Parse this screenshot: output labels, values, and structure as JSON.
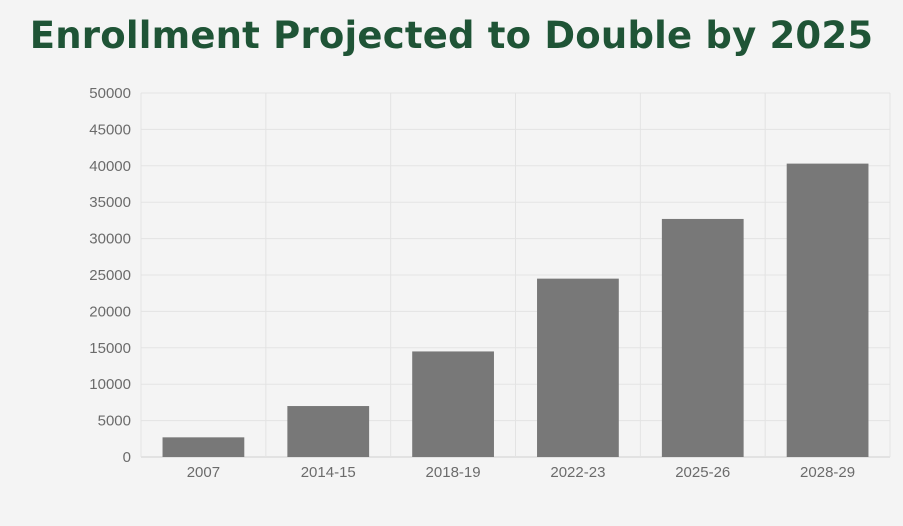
{
  "chart_data": {
    "type": "bar",
    "title": "Enrollment Projected to Double by 2025",
    "xlabel": "",
    "ylabel": "",
    "categories": [
      "2007",
      "2014-15",
      "2018-19",
      "2022-23",
      "2025-26",
      "2028-29"
    ],
    "values": [
      2700,
      7000,
      14500,
      24500,
      32700,
      40300
    ],
    "ylim": [
      0,
      50000
    ],
    "yticks": [
      "0",
      "5000",
      "10000",
      "15000",
      "20000",
      "25000",
      "30000",
      "35000",
      "40000",
      "45000",
      "50000"
    ],
    "grid": true,
    "legend": "none",
    "bar_color": "#787878",
    "title_color": "#1f5436"
  }
}
